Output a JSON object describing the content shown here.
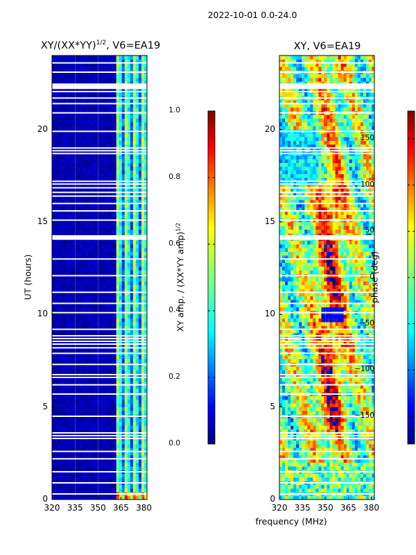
{
  "suptitle": "2022-10-01 0.0-24.0",
  "shared_xlabel": "frequency (MHz)",
  "colormap": [
    "#00007f",
    "#0000ff",
    "#0080ff",
    "#00ffff",
    "#80ff80",
    "#ffff00",
    "#ff8000",
    "#ff0000",
    "#7f0000"
  ],
  "chart_data": [
    {
      "type": "heatmap",
      "title": "XY/(XX*YY)^1/2, V6=EA19",
      "title_main": "XY/(XX*YY)",
      "title_sup": "1/2",
      "title_tail": ", V6=EA19",
      "xlabel": "",
      "ylabel": "UT (hours)",
      "xlim": [
        320,
        382
      ],
      "ylim": [
        0,
        24
      ],
      "xticks": [
        320,
        335,
        350,
        365,
        380
      ],
      "xtick_labels": [
        "320",
        "335",
        "350",
        "365",
        "380"
      ],
      "yticks": [
        0,
        5,
        10,
        15,
        20
      ],
      "ytick_labels": [
        "0",
        "5",
        "10",
        "15",
        "20"
      ],
      "colorbar": {
        "label": "XY amp. / (XX*YY amp)^1/2",
        "label_main": "XY amp. / (XX*YY amp)",
        "label_sup": "1/2",
        "range": [
          0.0,
          1.0
        ],
        "ticks": [
          0.0,
          0.2,
          0.4,
          0.6,
          0.8,
          1.0
        ],
        "tick_labels": [
          "0.0",
          "0.2",
          "0.4",
          "0.6",
          "0.8",
          "1.0"
        ]
      },
      "data_summary": "Mostly near 0 (dark blue) below ~363 MHz; vertical stripes of 0.2-0.6 (cyan/green) between ~363 and ~380 MHz; horizontal white gaps of missing data at many UT times."
    },
    {
      "type": "heatmap",
      "title": "XY, V6=EA19",
      "xlabel": "",
      "ylabel": "",
      "xlim": [
        320,
        382
      ],
      "ylim": [
        0,
        24
      ],
      "xticks": [
        320,
        335,
        350,
        365,
        380
      ],
      "xtick_labels": [
        "320",
        "335",
        "350",
        "365",
        "380"
      ],
      "yticks": [
        0,
        5,
        10,
        15,
        20
      ],
      "ytick_labels": [
        "0",
        "5",
        "10",
        "15",
        "20"
      ],
      "colorbar": {
        "label": "phase (deg)",
        "range": [
          -180,
          180
        ],
        "ticks": [
          -150,
          -100,
          -50,
          0,
          50,
          100,
          150
        ],
        "tick_labels": [
          "−150",
          "−100",
          "−50",
          "0",
          "50",
          "100",
          "150"
        ]
      },
      "data_summary": "Phase varies across the full -180 to 180 range; mostly positive (orange/red) around 345-365 MHz between ~4 and ~17 UT, cyan/yellow mixtures elsewhere."
    }
  ],
  "gaps_hours": [
    0.3,
    0.9,
    1.5,
    2.2,
    2.6,
    3.3,
    3.45,
    3.6,
    4.5,
    5.7,
    6.2,
    6.6,
    6.75,
    7.3,
    7.9,
    8.2,
    8.4,
    8.55,
    8.7,
    8.85,
    9.2,
    10.1,
    10.6,
    11.2,
    12.1,
    13.0,
    14.1,
    14.25,
    15.1,
    15.6,
    16.0,
    16.4,
    16.6,
    16.85,
    17.05,
    17.2,
    18.7,
    18.85,
    19.0,
    19.9,
    20.9,
    21.4,
    21.7,
    22.05,
    22.35,
    22.45,
    23.1,
    23.6
  ]
}
